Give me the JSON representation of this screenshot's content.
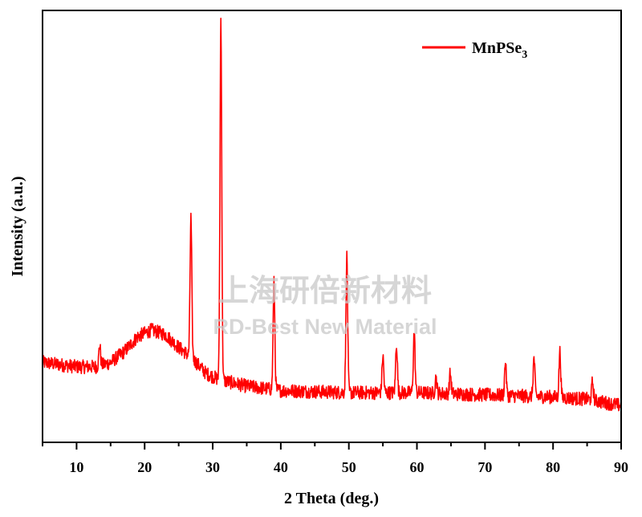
{
  "chart_data": {
    "type": "line",
    "title": "",
    "xlabel": "2 Theta (deg.)",
    "ylabel": "Intensity (a.u.)",
    "xlim": [
      5,
      90
    ],
    "ylim": [
      0,
      100
    ],
    "y_ticks_shown": false,
    "x_ticks": [
      10,
      20,
      30,
      40,
      50,
      60,
      70,
      80,
      90
    ],
    "grid": false,
    "legend_position": "top-right",
    "series": [
      {
        "name": "MnPSe3",
        "legend_main": "MnPSe",
        "legend_sub": "3",
        "color": "#ff0000",
        "baseline": [
          [
            5,
            18.5
          ],
          [
            10,
            17.5
          ],
          [
            13,
            17.5
          ],
          [
            15,
            18.5
          ],
          [
            17,
            21
          ],
          [
            19,
            24.5
          ],
          [
            21,
            26
          ],
          [
            23,
            25
          ],
          [
            25,
            22
          ],
          [
            27,
            19.5
          ],
          [
            29,
            16
          ],
          [
            31,
            14.5
          ],
          [
            35,
            13
          ],
          [
            40,
            12
          ],
          [
            50,
            11.5
          ],
          [
            60,
            11.5
          ],
          [
            70,
            11
          ],
          [
            80,
            10.5
          ],
          [
            85,
            10
          ],
          [
            90,
            8.5
          ]
        ],
        "peaks": [
          {
            "x": 13.4,
            "height": 22.5
          },
          {
            "x": 26.8,
            "height": 52
          },
          {
            "x": 31.2,
            "height": 98
          },
          {
            "x": 39.0,
            "height": 37
          },
          {
            "x": 49.7,
            "height": 43
          },
          {
            "x": 55.0,
            "height": 20
          },
          {
            "x": 57.0,
            "height": 23
          },
          {
            "x": 59.6,
            "height": 25.5
          },
          {
            "x": 62.8,
            "height": 15
          },
          {
            "x": 64.9,
            "height": 16
          },
          {
            "x": 73.0,
            "height": 18.5
          },
          {
            "x": 77.2,
            "height": 19.5
          },
          {
            "x": 81.0,
            "height": 21
          },
          {
            "x": 85.8,
            "height": 14
          }
        ]
      }
    ]
  },
  "watermark": {
    "chinese": "上海研倍新材料",
    "english": "RD-Best New Material"
  }
}
